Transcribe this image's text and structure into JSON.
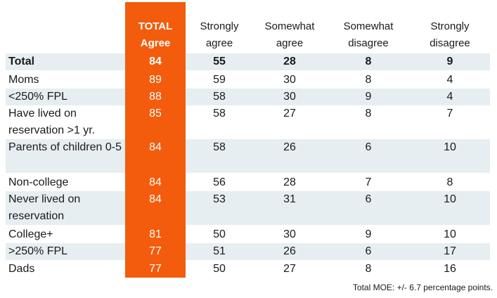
{
  "chart_data": {
    "type": "table",
    "columns": [
      {
        "key": "total",
        "label_lines": [
          "TOTAL",
          "Agree"
        ]
      },
      {
        "key": "sa",
        "label_lines": [
          "Strongly",
          "agree"
        ]
      },
      {
        "key": "swa",
        "label_lines": [
          "Somewhat",
          "agree"
        ]
      },
      {
        "key": "swd",
        "label_lines": [
          "Somewhat",
          "disagree"
        ]
      },
      {
        "key": "sd",
        "label_lines": [
          "Strongly",
          "disagree"
        ]
      }
    ],
    "rows": [
      {
        "label": "Total",
        "bold": true,
        "values": [
          84,
          55,
          28,
          8,
          9
        ]
      },
      {
        "label": "Moms",
        "values": [
          89,
          59,
          30,
          8,
          4
        ]
      },
      {
        "label": "<250% FPL",
        "values": [
          88,
          58,
          30,
          9,
          4
        ]
      },
      {
        "label": "Have lived on reservation >1 yr.",
        "values": [
          85,
          58,
          27,
          8,
          7
        ]
      },
      {
        "label": "Parents of children 0-5",
        "values": [
          84,
          58,
          26,
          6,
          10
        ]
      },
      {
        "label": "Non-college",
        "values": [
          84,
          56,
          28,
          7,
          8
        ]
      },
      {
        "label": "Never lived on reservation",
        "values": [
          84,
          53,
          31,
          6,
          10
        ]
      },
      {
        "label": "College+",
        "values": [
          81,
          50,
          30,
          9,
          10
        ]
      },
      {
        "label": ">250% FPL",
        "values": [
          77,
          51,
          26,
          6,
          17
        ]
      },
      {
        "label": "Dads",
        "values": [
          77,
          50,
          27,
          8,
          16
        ]
      }
    ],
    "note": "Total MOE: +/- 6.7 percentage points.",
    "colors": {
      "total_column": "#f25c0c",
      "band": "#e7eef1"
    }
  }
}
